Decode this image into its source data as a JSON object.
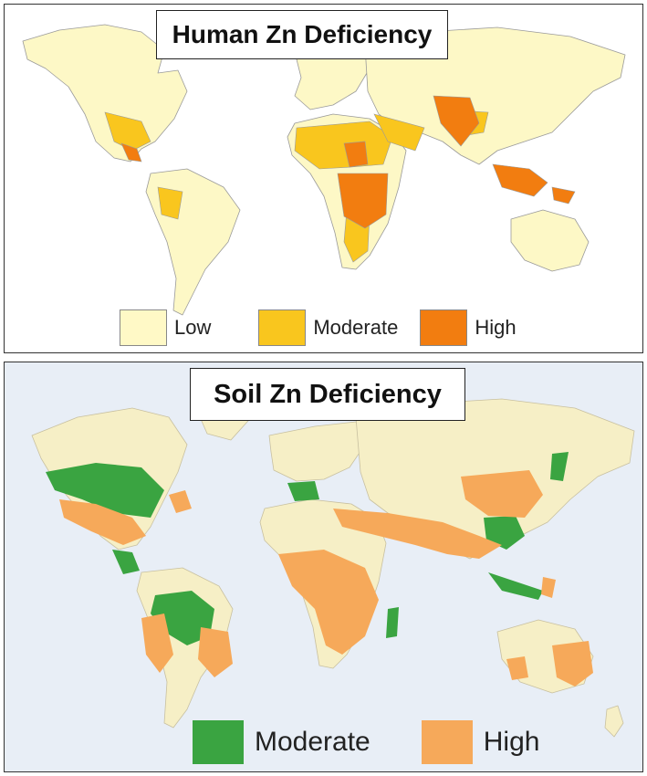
{
  "panels": [
    {
      "id": "human",
      "title": "Human Zn Deficiency",
      "colors": {
        "background": "#ffffff",
        "ocean": "#ffffff",
        "base": "#fdf8c6",
        "border": "#9a9a9a"
      },
      "legend": [
        {
          "label": "Low",
          "color": "#fff9c6"
        },
        {
          "label": "Moderate",
          "color": "#f9c61e"
        },
        {
          "label": "High",
          "color": "#f27d10"
        }
      ]
    },
    {
      "id": "soil",
      "title": "Soil Zn Deficiency",
      "colors": {
        "background": "#e8eef6",
        "ocean": "#e8eef6",
        "base": "#f6efc6",
        "border": "#c8c0a0"
      },
      "legend": [
        {
          "label": "Moderate",
          "color": "#3aa441"
        },
        {
          "label": "High",
          "color": "#f6a95a"
        }
      ]
    }
  ]
}
